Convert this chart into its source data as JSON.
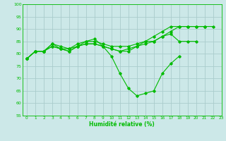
{
  "xlabel": "Humidité relative (%)",
  "background_color": "#cce8e8",
  "grid_color": "#aacccc",
  "line_color": "#00bb00",
  "ylim": [
    55,
    100
  ],
  "xlim": [
    -0.5,
    23
  ],
  "yticks": [
    55,
    60,
    65,
    70,
    75,
    80,
    85,
    90,
    95,
    100
  ],
  "xticks": [
    0,
    1,
    2,
    3,
    4,
    5,
    6,
    7,
    8,
    9,
    10,
    11,
    12,
    13,
    14,
    15,
    16,
    17,
    18,
    19,
    20,
    21,
    22,
    23
  ],
  "series": [
    [
      78,
      81,
      81,
      84,
      83,
      82,
      83,
      85,
      86,
      83,
      79,
      72,
      66,
      63,
      64,
      65,
      72,
      76,
      79,
      null,
      null,
      null,
      null,
      null
    ],
    [
      78,
      81,
      81,
      84,
      82,
      82,
      84,
      85,
      85,
      84,
      83,
      83,
      83,
      84,
      85,
      85,
      87,
      88,
      85,
      85,
      85,
      null,
      null,
      null
    ],
    [
      78,
      81,
      81,
      83,
      82,
      81,
      83,
      84,
      84,
      83,
      82,
      81,
      81,
      83,
      84,
      85,
      87,
      89,
      91,
      91,
      91,
      91,
      null,
      null
    ],
    [
      78,
      81,
      81,
      83,
      82,
      81,
      83,
      84,
      84,
      83,
      82,
      81,
      82,
      83,
      85,
      87,
      89,
      91,
      91,
      91,
      91,
      91,
      91,
      null
    ]
  ]
}
